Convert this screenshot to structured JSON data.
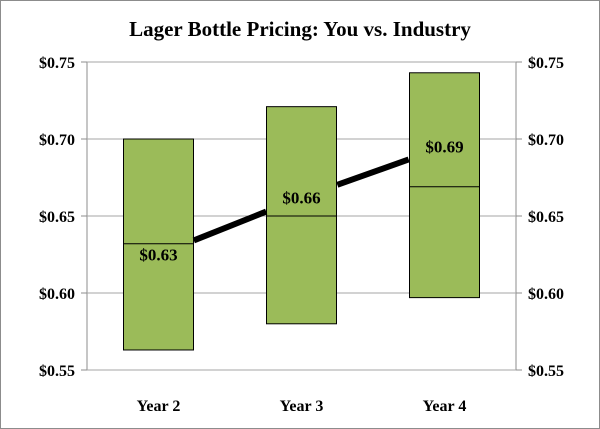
{
  "chart_data": {
    "type": "bar",
    "subtype": "floating-range-with-line",
    "title": "Lager Bottle Pricing: You vs. Industry",
    "categories": [
      "Year 2",
      "Year 3",
      "Year 4"
    ],
    "ylim": [
      0.55,
      0.75
    ],
    "yticks": [
      "$0.75",
      "$0.70",
      "$0.65",
      "$0.60",
      "$0.55"
    ],
    "ytick_values": [
      0.75,
      0.7,
      0.65,
      0.6,
      0.55
    ],
    "y_axis_both_sides": true,
    "grid": "horizontal",
    "legend": "none",
    "series": [
      {
        "kind": "range",
        "low": [
          0.563,
          0.58,
          0.597
        ],
        "median": [
          0.632,
          0.65,
          0.669
        ],
        "high": [
          0.7,
          0.721,
          0.743
        ]
      },
      {
        "kind": "line",
        "values": [
          0.625,
          0.662,
          0.695
        ],
        "labels": [
          "$0.63",
          "$0.66",
          "$0.69"
        ]
      }
    ],
    "colors": {
      "box_fill": "#9bbb59",
      "box_stroke": "#000000",
      "line": "#000000",
      "grid": "#a6a6a6"
    }
  }
}
